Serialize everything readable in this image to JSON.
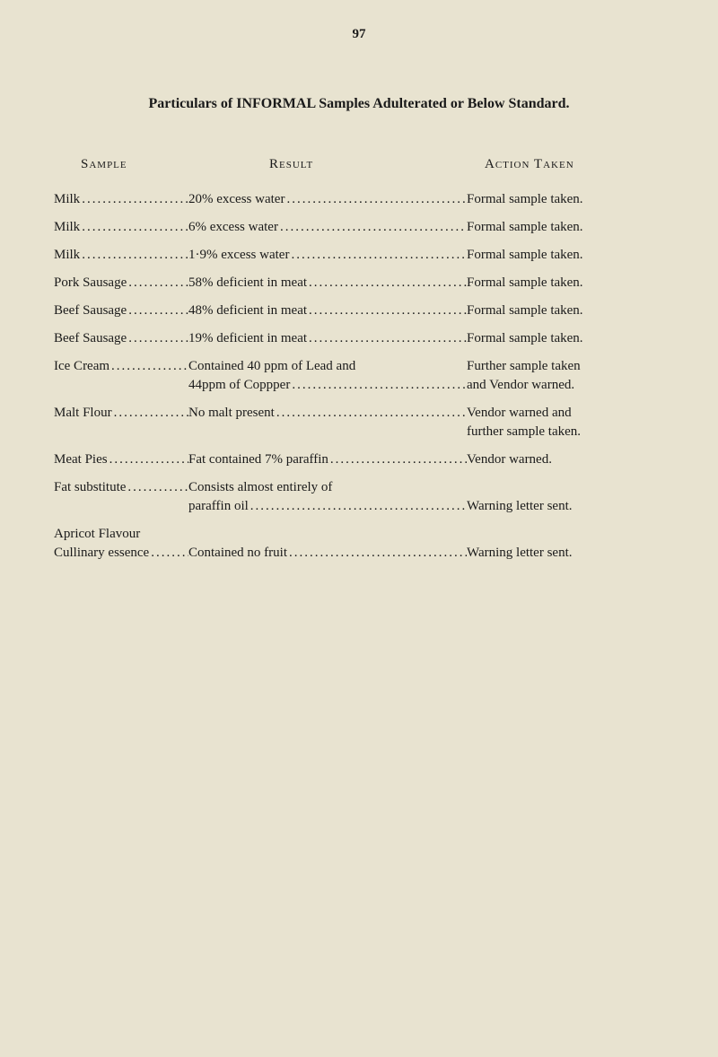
{
  "page_number": "97",
  "title": "Particulars of INFORMAL Samples Adulterated or Below Standard.",
  "headers": {
    "sample": "Sample",
    "result": "Result",
    "action": "Action Taken"
  },
  "rows": [
    {
      "sample": "Milk",
      "result": "20% excess water",
      "action": "Formal sample taken."
    },
    {
      "sample": "Milk",
      "result": "6% excess water",
      "action": "Formal sample taken."
    },
    {
      "sample": "Milk",
      "result": "1·9% excess water",
      "action": "Formal sample taken."
    },
    {
      "sample": "Pork Sausage",
      "result": "58% deficient in meat",
      "action": "Formal sample taken."
    },
    {
      "sample": "Beef Sausage",
      "result": "48% deficient in meat",
      "action": "Formal sample taken."
    },
    {
      "sample": "Beef Sausage",
      "result": "19% deficient in meat",
      "action": "Formal sample taken."
    },
    {
      "sample": "Ice Cream",
      "result_line1": "Contained 40 ppm of Lead and",
      "result_line2": "44ppm of Coppper",
      "action_line1": "Further sample taken",
      "action_line2": "and Vendor warned."
    },
    {
      "sample": "Malt Flour",
      "result": "No malt present",
      "action_line1": "Vendor warned and",
      "action_line2": "further sample taken."
    },
    {
      "sample": "Meat Pies",
      "result": "Fat contained 7% paraffin",
      "action": "Vendor warned."
    },
    {
      "sample": "Fat substitute",
      "result_line1": "Consists almost entirely of",
      "result_line2": "paraffin oil",
      "action_line1": " ",
      "action_line2": "Warning letter sent."
    },
    {
      "sample_line1": "Apricot Flavour",
      "sample_line2": "Cullinary essence",
      "result_line1": " ",
      "result_line2": "Contained no fruit",
      "action_line1": " ",
      "action_line2": "Warning letter sent."
    }
  ],
  "colors": {
    "background": "#e8e3d0",
    "text": "#1a1a1a"
  },
  "fonts": {
    "body_size": 15,
    "title_size": 16
  }
}
